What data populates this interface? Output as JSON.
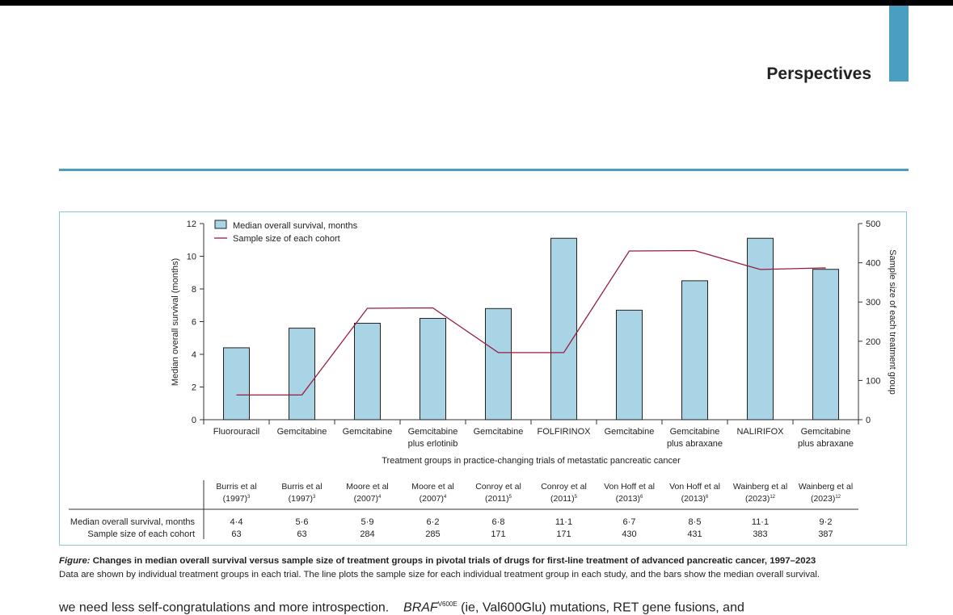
{
  "page": {
    "section_title": "Perspectives",
    "accent_color": "#4a9ec0"
  },
  "chart_data": {
    "type": "bar",
    "categories": [
      "Fluorouracil",
      "Gemcitabine",
      "Gemcitabine",
      "Gemcitabine plus erlotinib",
      "Gemcitabine",
      "FOLFIRINOX",
      "Gemcitabine",
      "Gemcitabine plus abraxane",
      "NALIRIFOX",
      "Gemcitabine plus abraxane"
    ],
    "category_lines": [
      [
        "Fluorouracil"
      ],
      [
        "Gemcitabine"
      ],
      [
        "Gemcitabine"
      ],
      [
        "Gemcitabine",
        "plus erlotinib"
      ],
      [
        "Gemcitabine"
      ],
      [
        "FOLFIRINOX"
      ],
      [
        "Gemcitabine"
      ],
      [
        "Gemcitabine",
        "plus abraxane"
      ],
      [
        "NALIRIFOX"
      ],
      [
        "Gemcitabine",
        "plus abraxane"
      ]
    ],
    "series": [
      {
        "name": "Median overall survival, months",
        "kind": "bar",
        "axis": "left",
        "color": "#a8d4e6",
        "values": [
          4.4,
          5.6,
          5.9,
          6.2,
          6.8,
          11.1,
          6.7,
          8.5,
          11.1,
          9.2
        ]
      },
      {
        "name": "Sample size of each cohort",
        "kind": "line",
        "axis": "right",
        "color": "#9b1b3c",
        "values": [
          63,
          63,
          284,
          285,
          171,
          171,
          430,
          431,
          383,
          387
        ]
      }
    ],
    "xlabel": "Treatment groups in practice-changing trials of metastatic pancreatic cancer",
    "ylabel": "Median overall survival (months)",
    "y2label": "Sample size of each treatment group",
    "ylim": [
      0,
      12
    ],
    "yticks": [
      0,
      2,
      4,
      6,
      8,
      10,
      12
    ],
    "y2lim": [
      0,
      500
    ],
    "y2ticks": [
      0,
      100,
      200,
      300,
      400,
      500
    ],
    "legend_position": "top-left",
    "grid": false,
    "table": {
      "trials": [
        {
          "name": "Burris et al",
          "year": "(1997)",
          "ref": "3"
        },
        {
          "name": "Burris et al",
          "year": "(1997)",
          "ref": "3"
        },
        {
          "name": "Moore et al",
          "year": "(2007)",
          "ref": "4"
        },
        {
          "name": "Moore et al",
          "year": "(2007)",
          "ref": "4"
        },
        {
          "name": "Conroy et al",
          "year": "(2011)",
          "ref": "5"
        },
        {
          "name": "Conroy et al",
          "year": "(2011)",
          "ref": "5"
        },
        {
          "name": "Von Hoff et al",
          "year": "(2013)",
          "ref": "6"
        },
        {
          "name": "Von Hoff et al",
          "year": "(2013)",
          "ref": "6"
        },
        {
          "name": "Wainberg et al",
          "year": "(2023)",
          "ref": "12"
        },
        {
          "name": "Wainberg et al",
          "year": "(2023)",
          "ref": "12"
        }
      ],
      "row_labels": [
        "Median overall survival, months",
        "Sample size of each cohort"
      ],
      "os_display": [
        "4·4",
        "5·6",
        "5·9",
        "6·2",
        "6·8",
        "11·1",
        "6·7",
        "8·5",
        "11·1",
        "9·2"
      ],
      "n_display": [
        "63",
        "63",
        "284",
        "285",
        "171",
        "171",
        "430",
        "431",
        "383",
        "387"
      ]
    }
  },
  "caption": {
    "label": "Figure:",
    "title": " Changes in median overall survival versus sample size of treatment groups in pivotal trials of drugs for first-line treatment of advanced pancreatic cancer, 1997–2023",
    "body": "Data are shown by individual treatment groups in each trial. The line plots the sample size for each individual treatment group in each study, and the bars show the median overall survival."
  },
  "body_text": {
    "left": "we need less self-congratulations and more introspection.",
    "gene": "BRAF",
    "gene_sup": "V600E",
    "right": " (ie, Val600Glu) mutations, RET gene fusions, and"
  }
}
